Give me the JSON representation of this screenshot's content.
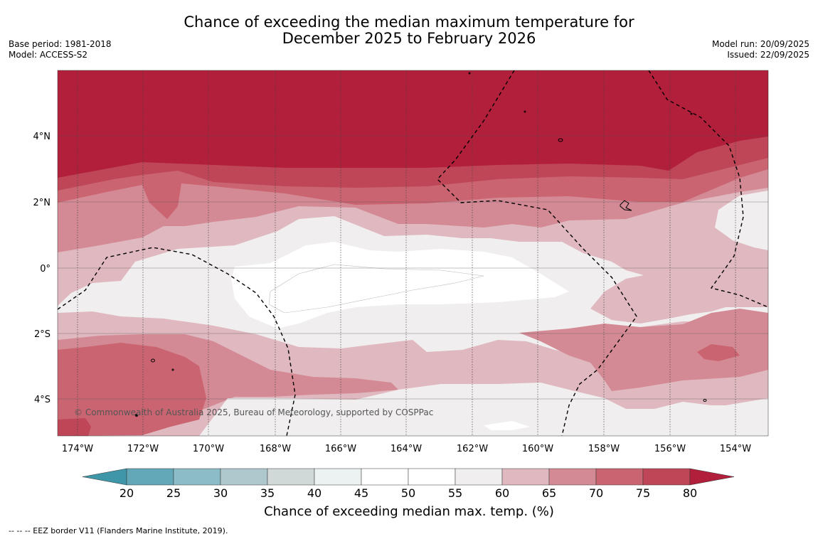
{
  "title_line1": "Chance of exceeding the median maximum temperature for",
  "title_line2": "December 2025 to February 2026",
  "meta_left": {
    "base_period": "Base period: 1981-2018",
    "model": "Model: ACCESS-S2"
  },
  "meta_right": {
    "model_run": "Model run: 20/09/2025",
    "issued": "Issued: 22/09/2025"
  },
  "copyright": "© Commonwealth of Australia 2025, Bureau of Meteorology, supported by COSPPac",
  "map": {
    "lon_range": [
      -174.6,
      -153.1
    ],
    "lat_range": [
      -5.1,
      5.9
    ],
    "lon_ticks": [
      {
        "value": -174,
        "label": "174°W"
      },
      {
        "value": -172,
        "label": "172°W"
      },
      {
        "value": -170,
        "label": "170°W"
      },
      {
        "value": -168,
        "label": "168°W"
      },
      {
        "value": -166,
        "label": "166°W"
      },
      {
        "value": -164,
        "label": "164°W"
      },
      {
        "value": -162,
        "label": "162°W"
      },
      {
        "value": -160,
        "label": "160°W"
      },
      {
        "value": -158,
        "label": "158°W"
      },
      {
        "value": -156,
        "label": "156°W"
      },
      {
        "value": -154,
        "label": "154°W"
      }
    ],
    "lat_ticks": [
      {
        "value": 4,
        "label": "4°N"
      },
      {
        "value": 2,
        "label": "2°N"
      },
      {
        "value": 0,
        "label": "0°"
      },
      {
        "value": -2,
        "label": "2°S"
      },
      {
        "value": -4,
        "label": "4°S"
      }
    ]
  },
  "colorbar": {
    "title": "Chance of exceeding median max. temp. (%)",
    "ticks": [
      "20",
      "25",
      "30",
      "35",
      "40",
      "45",
      "50",
      "55",
      "60",
      "65",
      "70",
      "75",
      "80"
    ],
    "colors": [
      "#62a8b8",
      "#8cbcc8",
      "#aec8cd",
      "#d0d8d8",
      "#ecf1f2",
      "#ffffff",
      "#ffffff",
      "#f0eeee",
      "#e0b8bf",
      "#d48a95",
      "#ca6470",
      "#be4656"
    ],
    "low_color": "#3e96a8",
    "high_color": "#b21f3a"
  },
  "colors": {
    "c80": "#b21f3a",
    "c75": "#be4656",
    "c70": "#ca6470",
    "c65": "#d48a95",
    "c60": "#e0b8bf",
    "c55": "#f0eeee",
    "c50": "#ffffff",
    "c45": "#ffffff"
  },
  "footnote": "--  --  -- EEZ border V11 (Flanders Marine Institute, 2019)."
}
